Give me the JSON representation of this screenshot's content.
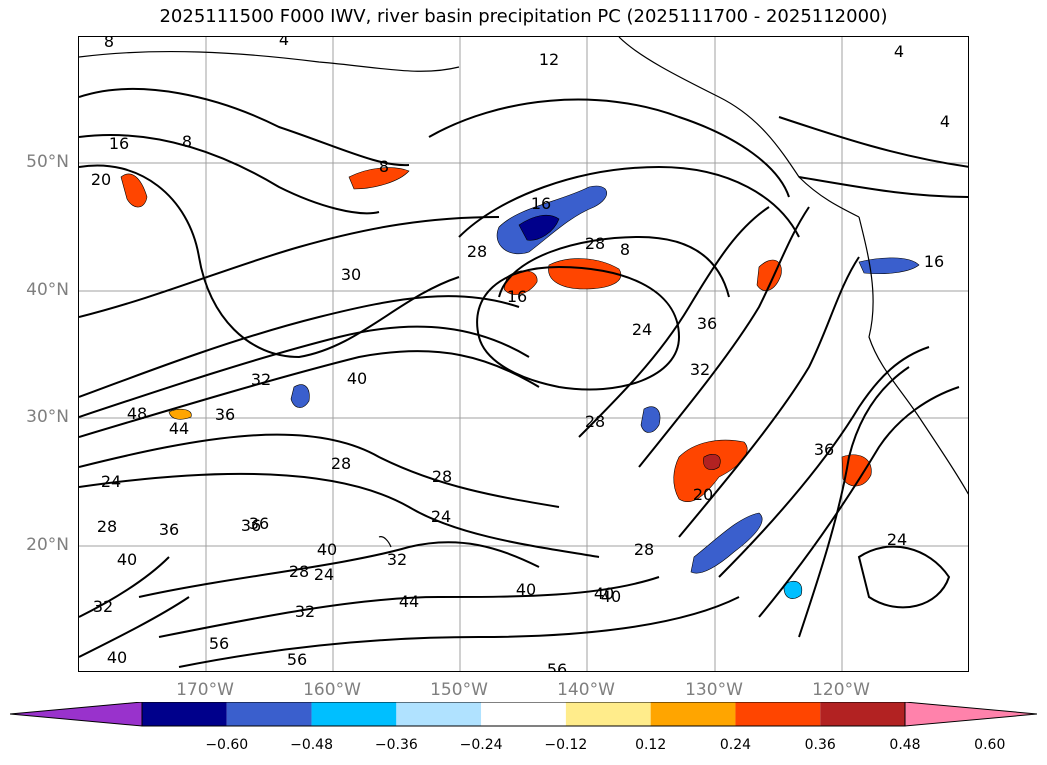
{
  "title": "2025111500 F000 IWV, river basin precipitation PC (2025111700 - 2025112000)",
  "axes": {
    "lat_labels": [
      "50°N",
      "40°N",
      "30°N",
      "20°N"
    ],
    "lon_labels": [
      "170°W",
      "160°W",
      "150°W",
      "140°W",
      "130°W",
      "120°W"
    ],
    "label_color": "#7f7f7f"
  },
  "colorbar": {
    "ticks": [
      "−0.60",
      "−0.48",
      "−0.36",
      "−0.24",
      "−0.12",
      "0.12",
      "0.24",
      "0.36",
      "0.48",
      "0.60"
    ],
    "colors": [
      "#9932cc",
      "#00008b",
      "#3a5fcd",
      "#00bfff",
      "#b0e2ff",
      "#ffffff",
      "#ffec8b",
      "#ffa500",
      "#ff4500",
      "#b22222",
      "#ff82ab"
    ]
  },
  "contour_labels": [
    "8",
    "4",
    "12",
    "4",
    "16",
    "8",
    "20",
    "8",
    "4",
    "16",
    "28",
    "28",
    "16",
    "8",
    "16",
    "30",
    "40",
    "24",
    "36",
    "48",
    "36",
    "32",
    "32",
    "28",
    "28",
    "28",
    "20",
    "24",
    "44",
    "24",
    "28",
    "36",
    "36",
    "40",
    "40",
    "40",
    "32",
    "24",
    "28",
    "32",
    "28",
    "40",
    "40",
    "44",
    "24",
    "32",
    "36",
    "36",
    "56",
    "56",
    "40",
    "56"
  ],
  "colors": {
    "pos_low": "#ffec8b",
    "pos_mid": "#ffa500",
    "pos_high": "#ff4500",
    "pos_top": "#b22222",
    "neg_low": "#b0e2ff",
    "neg_mid": "#00bfff",
    "neg_high": "#3a5fcd",
    "neg_top": "#00008b"
  }
}
